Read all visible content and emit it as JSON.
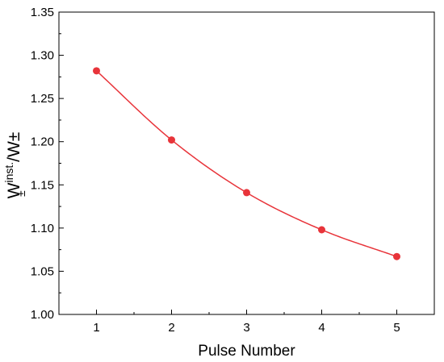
{
  "chart_data": {
    "type": "line",
    "title": "",
    "xlabel": "Pulse Number",
    "ylabel": {
      "base": "W",
      "subscript": "±",
      "superscript": "inst.",
      "tail": "/W±"
    },
    "x": [
      1,
      2,
      3,
      4,
      5
    ],
    "xticks": [
      "1",
      "2",
      "3",
      "4",
      "5"
    ],
    "xlim": [
      0.5,
      5.5
    ],
    "ylim": [
      1.0,
      1.35
    ],
    "yticks": [
      "1.00",
      "1.05",
      "1.10",
      "1.15",
      "1.20",
      "1.25",
      "1.30",
      "1.35"
    ],
    "series": [
      {
        "values": [
          1.282,
          1.202,
          1.141,
          1.098,
          1.067
        ],
        "color": "#e8343a",
        "marker": "circle",
        "line": "smooth fit"
      }
    ],
    "grid": false,
    "legend": "none"
  }
}
